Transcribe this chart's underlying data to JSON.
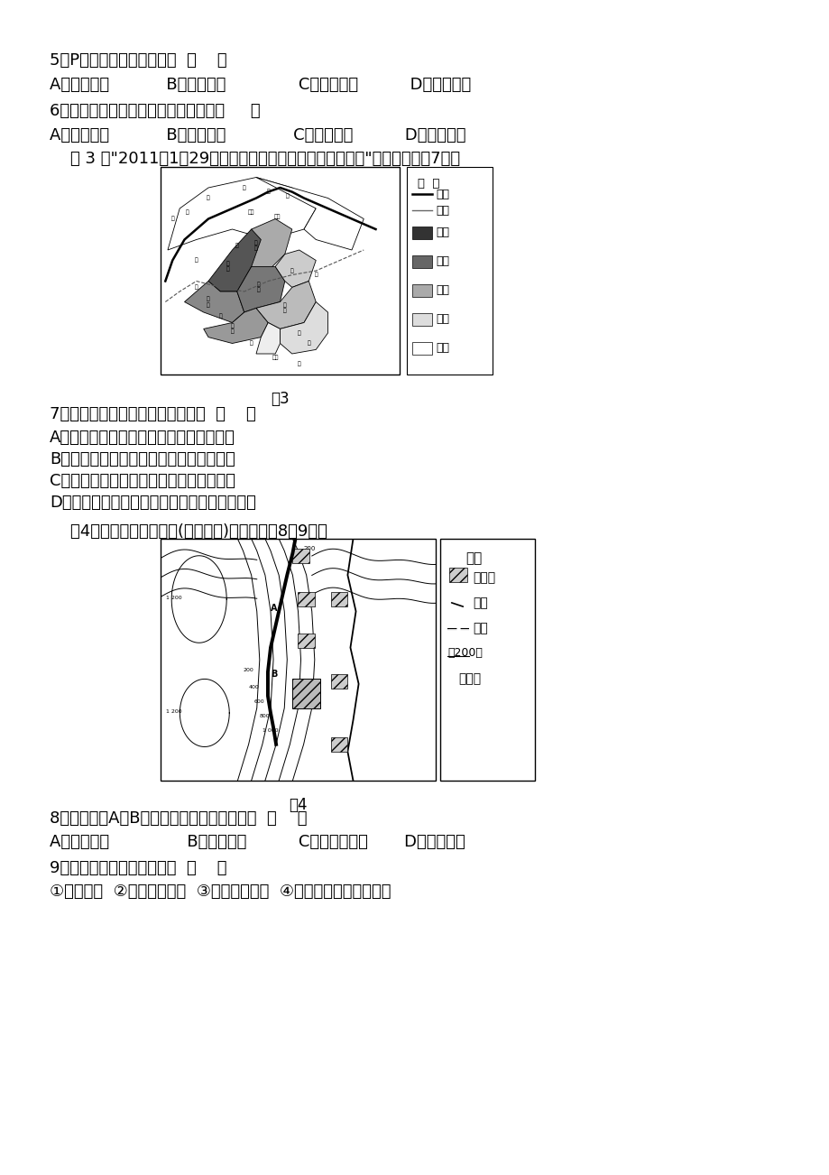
{
  "bg_color": "#ffffff",
  "text_color": "#000000",
  "q5_text": "5．P陡坡形成的主要原因是  （    ）",
  "q5_options": "A．流水侵蚀           B．冰川堆积              C．岩浆活动          D．断层活动",
  "q6_text": "6．图示洋流对沿岸地区气候的影响是（     ）",
  "q6_options": "A．增温增湿           B．增温减湿             C．降温减湿          D．降温增湿",
  "fig3_caption": "    图 3 为\"2011年1月29日我国局部地区气象干旱分布示意图\"。读图完成第7题。",
  "fig3_label": "图3",
  "fig4_intro": "    图4是某地等高线地形图(单位：米)，读图完成8～9题。",
  "fig4_label": "图4",
  "q7_text": "7．导致此次气象干旱的主要原因是  （    ）",
  "q7_A": "A．亚洲低压势力强，沙尘暴频繁影响我国",
  "q7_B": "B．夏季风势力强，锋面雨带位置持续偏北",
  "q7_C": "C．冬季风势力强，旱区长期受冷气团控制",
  "q7_D": "D．受拉尼娜现象影响，出现暖冬，蒸发量增大",
  "q8_text": "8．导致图中A到B段铁路线弯曲的主导因素有  （    ）",
  "q8_options": "A．避开河谷               B．避开山脊          C．联系居民点       D．避开断层",
  "q9_text": "9．图中居民点的分布特点是  （    ）",
  "q9_options": "①沿河分布  ②沿交通线分布  ③沿断层线分布  ④聚落的规模与地形有关"
}
